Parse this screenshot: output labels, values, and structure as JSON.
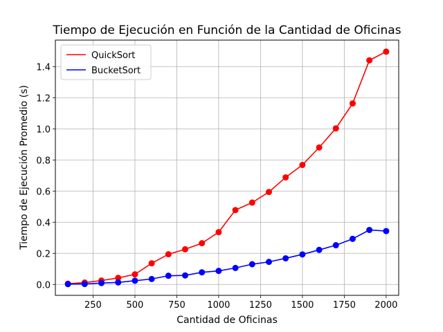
{
  "chart_data": {
    "type": "line",
    "title": "Tiempo de Ejecución en Función de la Cantidad de Oficinas",
    "xlabel": "Cantidad de Oficinas",
    "ylabel": "Tiempo de Ejecución Promedio (s)",
    "xlim": [
      25,
      2075
    ],
    "ylim": [
      -0.07,
      1.57
    ],
    "xticks": [
      250,
      500,
      750,
      1000,
      1250,
      1500,
      1750,
      2000
    ],
    "xtick_labels": [
      "250",
      "500",
      "750",
      "1000",
      "1250",
      "1500",
      "1750",
      "2000"
    ],
    "yticks": [
      0.0,
      0.2,
      0.4,
      0.6,
      0.8,
      1.0,
      1.2,
      1.4
    ],
    "ytick_labels": [
      "0.0",
      "0.2",
      "0.4",
      "0.6",
      "0.8",
      "1.0",
      "1.2",
      "1.4"
    ],
    "grid": true,
    "legend_position": "top-left",
    "x": [
      100,
      200,
      300,
      400,
      500,
      600,
      700,
      800,
      900,
      1000,
      1100,
      1200,
      1300,
      1400,
      1500,
      1600,
      1700,
      1800,
      1900,
      2000
    ],
    "series": [
      {
        "name": "QuickSort",
        "color": "#ff0000",
        "values": [
          0.005,
          0.012,
          0.025,
          0.042,
          0.065,
          0.136,
          0.194,
          0.226,
          0.265,
          0.336,
          0.478,
          0.526,
          0.594,
          0.688,
          0.768,
          0.88,
          1.003,
          1.163,
          1.44,
          1.496
        ]
      },
      {
        "name": "BucketSort",
        "color": "#0000ff",
        "values": [
          0.002,
          0.003,
          0.009,
          0.013,
          0.024,
          0.035,
          0.056,
          0.058,
          0.078,
          0.087,
          0.106,
          0.13,
          0.145,
          0.168,
          0.193,
          0.222,
          0.252,
          0.293,
          0.35,
          0.343
        ]
      }
    ]
  }
}
